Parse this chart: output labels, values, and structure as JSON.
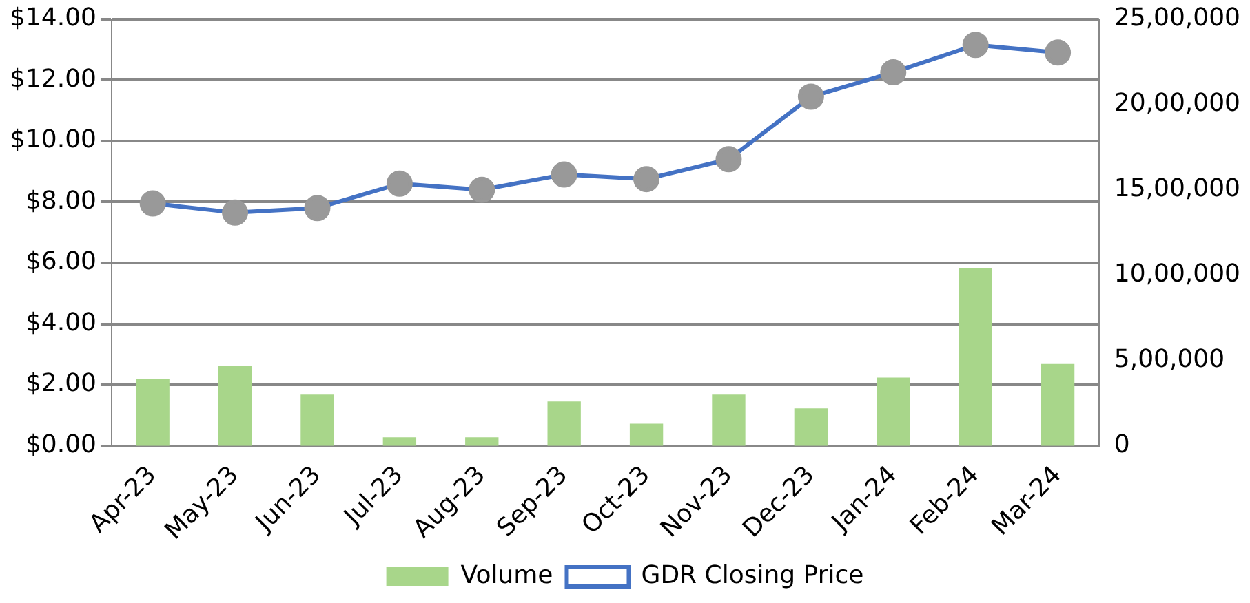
{
  "chart_data": {
    "type": "bar",
    "categories": [
      "Apr-23",
      "May-23",
      "Jun-23",
      "Jul-23",
      "Aug-23",
      "Sep-23",
      "Oct-23",
      "Nov-23",
      "Dec-23",
      "Jan-24",
      "Feb-24",
      "Mar-24"
    ],
    "series": [
      {
        "name": "Volume",
        "axis": "y2",
        "color": "#a8d68a",
        "values": [
          390000,
          470000,
          300000,
          50000,
          50000,
          260000,
          130000,
          300000,
          220000,
          400000,
          1040000,
          480000
        ]
      },
      {
        "name": "GDR Closing Price",
        "type": "line",
        "axis": "y",
        "color": "#4472c4",
        "values": [
          7.95,
          7.65,
          7.8,
          8.6,
          8.4,
          8.9,
          8.75,
          9.4,
          11.45,
          12.25,
          13.15,
          12.9
        ]
      }
    ],
    "ylim": [
      0,
      14
    ],
    "yticks": [
      {
        "value": 0,
        "label": "$0.00"
      },
      {
        "value": 2,
        "label": "$2.00"
      },
      {
        "value": 4,
        "label": "$4.00"
      },
      {
        "value": 6,
        "label": "$6.00"
      },
      {
        "value": 8,
        "label": "$8.00"
      },
      {
        "value": 10,
        "label": "$10.00"
      },
      {
        "value": 12,
        "label": "$12.00"
      },
      {
        "value": 14,
        "label": "$14.00"
      }
    ],
    "y2lim": [
      0,
      2500000
    ],
    "y2ticks": [
      0,
      {
        "value": 500000,
        "label": "5,00,000"
      },
      {
        "value": 1000000,
        "label": "10,00,000"
      },
      {
        "value": 1500000,
        "label": "15,00,000"
      },
      {
        "value": 2000000,
        "label": "20,00,000"
      },
      {
        "value": 2500000,
        "label": "25,00,000"
      }
    ],
    "grid": "y",
    "legend": "bottom",
    "marker": "circle",
    "line_style": "solid"
  }
}
